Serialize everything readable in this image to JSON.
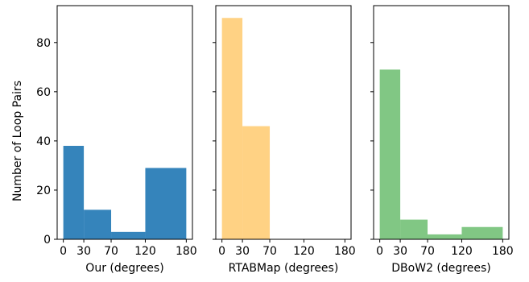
{
  "ylabel": "Number of Loop Pairs",
  "chart_data": [
    {
      "type": "bar",
      "xlabel": "Our (degrees)",
      "xticks": [
        0,
        30,
        70,
        120,
        180
      ],
      "bins": [
        [
          0,
          30
        ],
        [
          30,
          70
        ],
        [
          70,
          120
        ],
        [
          120,
          180
        ]
      ],
      "values": [
        38,
        12,
        3,
        29
      ],
      "color": "#1f77b4",
      "opacity": 0.9,
      "xlim": [
        -9,
        189
      ],
      "ylim": [
        0,
        95
      ],
      "yticks": [
        0,
        20,
        40,
        60,
        80
      ],
      "show_ytick_labels": true
    },
    {
      "type": "bar",
      "xlabel": "RTABMap (degrees)",
      "xticks": [
        0,
        30,
        70,
        120,
        180
      ],
      "bins": [
        [
          0,
          30
        ],
        [
          30,
          70
        ]
      ],
      "values": [
        90,
        46
      ],
      "color": "#ffbf50",
      "opacity": 0.7,
      "xlim": [
        -9,
        189
      ],
      "ylim": [
        0,
        95
      ],
      "yticks": [
        0,
        20,
        40,
        60,
        80
      ],
      "show_ytick_labels": false
    },
    {
      "type": "bar",
      "xlabel": "DBoW2 (degrees)",
      "xticks": [
        0,
        30,
        70,
        120,
        180
      ],
      "bins": [
        [
          0,
          30
        ],
        [
          30,
          70
        ],
        [
          70,
          120
        ],
        [
          120,
          180
        ]
      ],
      "values": [
        69,
        8,
        2,
        5
      ],
      "color": "#4caf50",
      "opacity": 0.7,
      "xlim": [
        -9,
        189
      ],
      "ylim": [
        0,
        95
      ],
      "yticks": [
        0,
        20,
        40,
        60,
        80
      ],
      "show_ytick_labels": false
    }
  ]
}
